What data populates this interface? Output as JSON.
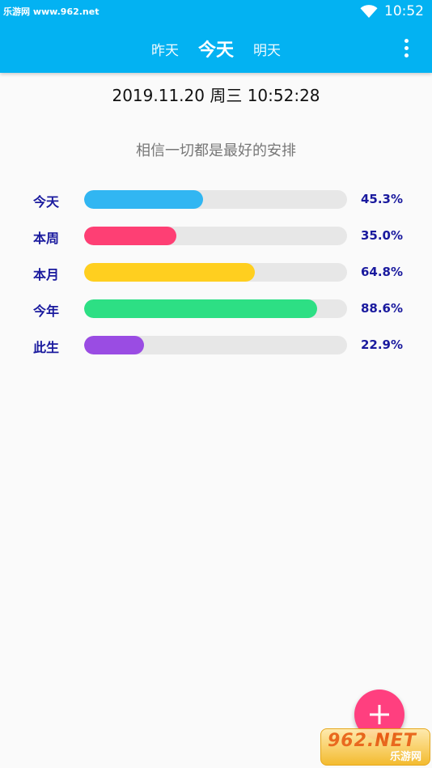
{
  "status_bar": {
    "site_text": "乐游网 www.962.net",
    "time": "10:52",
    "wifi_icon": "wifi-icon"
  },
  "tabs": [
    {
      "label": "昨天",
      "active": false
    },
    {
      "label": "今天",
      "active": true
    },
    {
      "label": "明天",
      "active": false
    }
  ],
  "menu_icon": "more-vertical-icon",
  "datetime": "2019.11.20 周三 10:52:28",
  "motto": "相信一切都是最好的安排",
  "progress": [
    {
      "label": "今天",
      "percent": 45.3,
      "percent_text": "45.3%",
      "color": "#31b6f2"
    },
    {
      "label": "本周",
      "percent": 35.0,
      "percent_text": "35.0%",
      "color": "#fe3f74"
    },
    {
      "label": "本月",
      "percent": 64.8,
      "percent_text": "64.8%",
      "color": "#ffcf1f"
    },
    {
      "label": "今年",
      "percent": 88.6,
      "percent_text": "88.6%",
      "color": "#2ddf84"
    },
    {
      "label": "此生",
      "percent": 22.9,
      "percent_text": "22.9%",
      "color": "#9a4ce3"
    }
  ],
  "fab": {
    "icon": "plus-icon",
    "color": "#ff3f7f"
  },
  "watermark": {
    "logo": "962.NET",
    "sub": "乐游网"
  },
  "colors": {
    "toolbar": "#03b2f2",
    "label_text": "#1a1a9e",
    "track": "#e7e7e7",
    "background": "#fafafa"
  }
}
